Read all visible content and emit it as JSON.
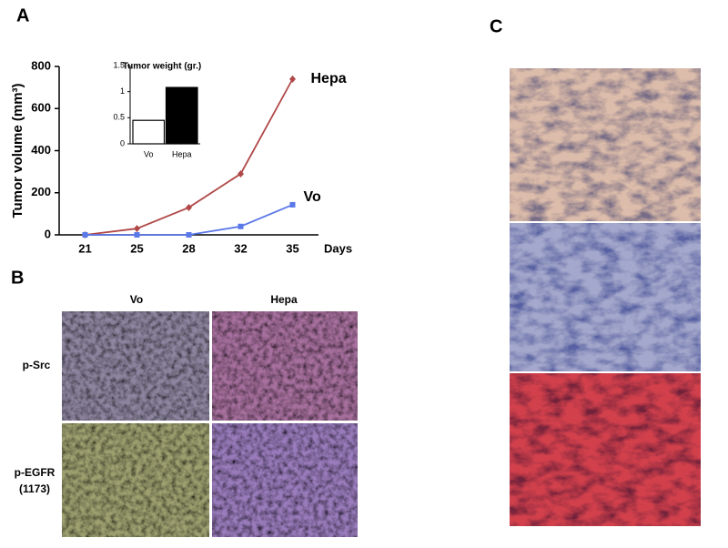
{
  "panels": {
    "a": "A",
    "b": "B",
    "c": "C"
  },
  "chart_data": [
    {
      "type": "line",
      "ylabel": "Tumor volume (mm³)",
      "xlabel": "Days",
      "categories": [
        "21",
        "25",
        "28",
        "32",
        "35"
      ],
      "ylim": [
        0,
        800
      ],
      "yticks": [
        0,
        200,
        400,
        600,
        800
      ],
      "series": [
        {
          "name": "Hepa",
          "color": "#b04848",
          "marker": "diamond",
          "values": [
            0,
            30,
            130,
            290,
            740
          ]
        },
        {
          "name": "Vo",
          "color": "#5b78e8",
          "marker": "square",
          "values": [
            0,
            0,
            0,
            40,
            143
          ]
        }
      ]
    },
    {
      "type": "bar",
      "title": "Tumor weight (gr.)",
      "categories": [
        "Vo",
        "Hepa"
      ],
      "values": [
        0.45,
        1.08
      ],
      "colors": [
        "#ffffff",
        "#000000"
      ],
      "ylim": [
        0,
        1.5
      ],
      "yticks": [
        0,
        0.5,
        1,
        1.5
      ]
    }
  ],
  "panel_b": {
    "columns": [
      "Vo",
      "Hepa"
    ],
    "rows": [
      [
        "p-Src"
      ],
      [
        "p-EGFR",
        "(1173)"
      ]
    ]
  }
}
